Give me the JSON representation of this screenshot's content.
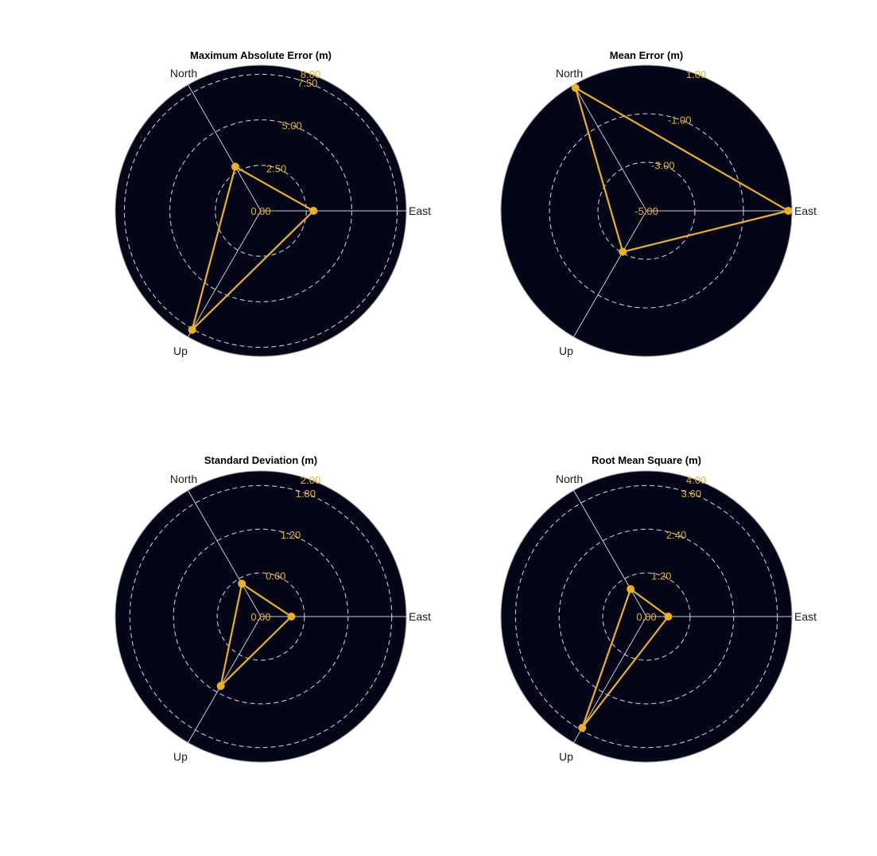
{
  "chart_data": [
    {
      "type": "radar",
      "title": "Maximum Absolute Error (m)",
      "axes": [
        "East",
        "North",
        "Up"
      ],
      "rlim": [
        0,
        8
      ],
      "ring_ticks": [
        0,
        2.5,
        5,
        7.5
      ],
      "tick_labels": [
        "0.00",
        "2.50",
        "5.00",
        "7.50",
        "8.00"
      ],
      "values": [
        2.9,
        2.8,
        7.55
      ]
    },
    {
      "type": "radar",
      "title": "Mean Error (m)",
      "axes": [
        "East",
        "North",
        "Up"
      ],
      "rlim": [
        -5,
        1
      ],
      "ring_ticks": [
        -5,
        -3,
        -1
      ],
      "tick_labels": [
        "-5.00",
        "-3.00",
        "-1.00",
        "1.00"
      ],
      "values": [
        0.85,
        0.85,
        -3.05
      ]
    },
    {
      "type": "radar",
      "title": "Standard Deviation (m)",
      "axes": [
        "East",
        "North",
        "Up"
      ],
      "rlim": [
        0,
        2
      ],
      "ring_ticks": [
        0,
        0.6,
        1.2,
        1.8
      ],
      "tick_labels": [
        "0.00",
        "0.60",
        "1.20",
        "1.80",
        "2.00"
      ],
      "values": [
        0.42,
        0.52,
        1.1
      ]
    },
    {
      "type": "radar",
      "title": "Root Mean Square (m)",
      "axes": [
        "East",
        "North",
        "Up"
      ],
      "rlim": [
        0,
        4
      ],
      "ring_ticks": [
        0,
        1.2,
        2.4,
        3.6
      ],
      "tick_labels": [
        "0.00",
        "1.20",
        "2.40",
        "3.60",
        "4.00"
      ],
      "values": [
        0.6,
        0.87,
        3.53
      ]
    }
  ],
  "colors": {
    "background": "#020617",
    "data": "#edb120",
    "tick_text": "#edb120",
    "grid": "#c8c8d4",
    "spoke": "#c8c8d4",
    "edge": "#a0a0a8"
  }
}
